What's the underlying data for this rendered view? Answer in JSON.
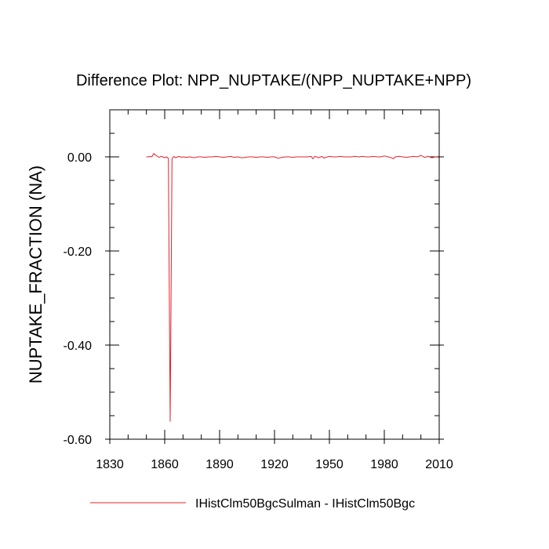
{
  "chart_data": {
    "type": "line",
    "title": "Difference Plot: NPP_NUPTAKE/(NPP_NUPTAKE+NPP)",
    "xlabel": "",
    "ylabel": "NUPTAKE_FRACTION  (NA)",
    "xlim": [
      1830,
      2010
    ],
    "ylim": [
      -0.6,
      0.1
    ],
    "x_ticks": [
      1830,
      1860,
      1890,
      1920,
      1950,
      1980,
      2010
    ],
    "x_tick_labels": [
      "1830",
      "1860",
      "1890",
      "1920",
      "1950",
      "1980",
      "2010"
    ],
    "y_ticks": [
      0.0,
      -0.2,
      -0.4,
      -0.6
    ],
    "y_tick_labels": [
      "0.00",
      "-0.20",
      "-0.40",
      "-0.60"
    ],
    "grid": false,
    "legend_position": "bottom",
    "series": [
      {
        "name": "IHistClm50BgcSulman - IHistClm50Bgc",
        "color": "#e8202a",
        "x": [
          1850,
          1851,
          1852,
          1853,
          1854,
          1855,
          1856,
          1857,
          1858,
          1859,
          1860,
          1861,
          1862,
          1863,
          1864,
          1865,
          1866,
          1867,
          1868,
          1869,
          1870,
          1872,
          1874,
          1876,
          1878,
          1880,
          1882,
          1884,
          1886,
          1888,
          1890,
          1892,
          1894,
          1896,
          1898,
          1900,
          1902,
          1904,
          1906,
          1908,
          1910,
          1912,
          1914,
          1916,
          1918,
          1920,
          1922,
          1924,
          1926,
          1928,
          1930,
          1932,
          1934,
          1936,
          1938,
          1940,
          1941,
          1942,
          1943,
          1944,
          1946,
          1947,
          1948,
          1949,
          1950,
          1952,
          1954,
          1956,
          1958,
          1960,
          1962,
          1964,
          1966,
          1968,
          1970,
          1972,
          1974,
          1976,
          1978,
          1980,
          1982,
          1984,
          1985,
          1986,
          1988,
          1990,
          1992,
          1994,
          1996,
          1998,
          2000,
          2002,
          2004,
          2006,
          2008,
          2010
        ],
        "values": [
          0.0,
          0.0,
          0.001,
          0.0,
          0.007,
          0.004,
          0.001,
          -0.001,
          0.001,
          0.0,
          -0.002,
          0.0,
          -0.003,
          -0.562,
          -0.004,
          0.001,
          -0.002,
          0.0,
          0.001,
          -0.001,
          0.0,
          -0.001,
          0.0,
          -0.002,
          0.0,
          0.0,
          -0.001,
          0.0,
          0.0,
          0.001,
          0.0,
          -0.001,
          0.0,
          0.001,
          -0.001,
          0.0,
          -0.002,
          -0.001,
          0.0,
          0.0,
          -0.001,
          0.0,
          0.0,
          -0.001,
          0.0,
          0.0,
          -0.003,
          -0.001,
          0.0,
          0.0,
          -0.001,
          0.0,
          0.0,
          0.0,
          0.0,
          0.001,
          -0.004,
          0.001,
          0.0,
          -0.002,
          0.001,
          -0.003,
          -0.001,
          0.0,
          0.001,
          0.0,
          0.0,
          0.001,
          0.0,
          0.0,
          0.0,
          0.001,
          0.0,
          0.001,
          0.0,
          0.0,
          0.001,
          0.0,
          0.0,
          0.002,
          0.0,
          -0.002,
          -0.004,
          0.0,
          0.001,
          0.0,
          -0.001,
          0.0,
          0.001,
          0.0,
          0.003,
          -0.001,
          0.001,
          -0.002,
          0.0,
          -0.001
        ]
      }
    ]
  }
}
